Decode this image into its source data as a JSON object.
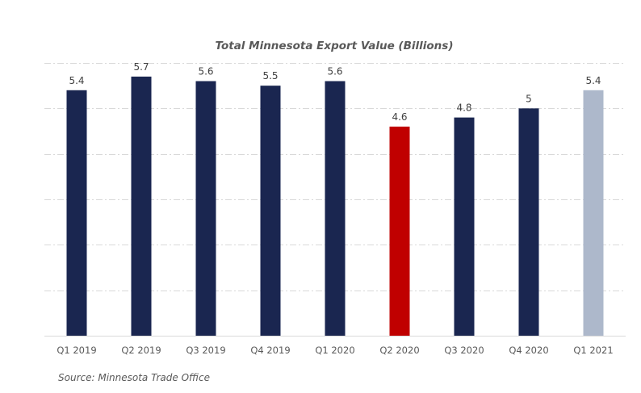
{
  "chart_data": {
    "type": "bar",
    "title": "Total Minnesota Export Value (Billions)",
    "xlabel": "",
    "ylabel": "",
    "ylim": [
      0,
      6
    ],
    "grid": true,
    "legend": "none",
    "categories": [
      "Q1 2019",
      "Q2 2019",
      "Q3 2019",
      "Q4 2019",
      "Q1 2020",
      "Q2 2020",
      "Q3 2020",
      "Q4 2020",
      "Q1 2021"
    ],
    "values": [
      5.4,
      5.7,
      5.6,
      5.5,
      5.6,
      4.6,
      4.8,
      5,
      5.4
    ],
    "data_labels": [
      "5.4",
      "5.7",
      "5.6",
      "5.5",
      "5.6",
      "4.6",
      "4.8",
      "5",
      "5.4"
    ],
    "colors": [
      "#1a2650",
      "#1a2650",
      "#1a2650",
      "#1a2650",
      "#1a2650",
      "#c00000",
      "#1a2650",
      "#1a2650",
      "#adb8cb"
    ],
    "source": "Source: Minnesota Trade Office"
  }
}
